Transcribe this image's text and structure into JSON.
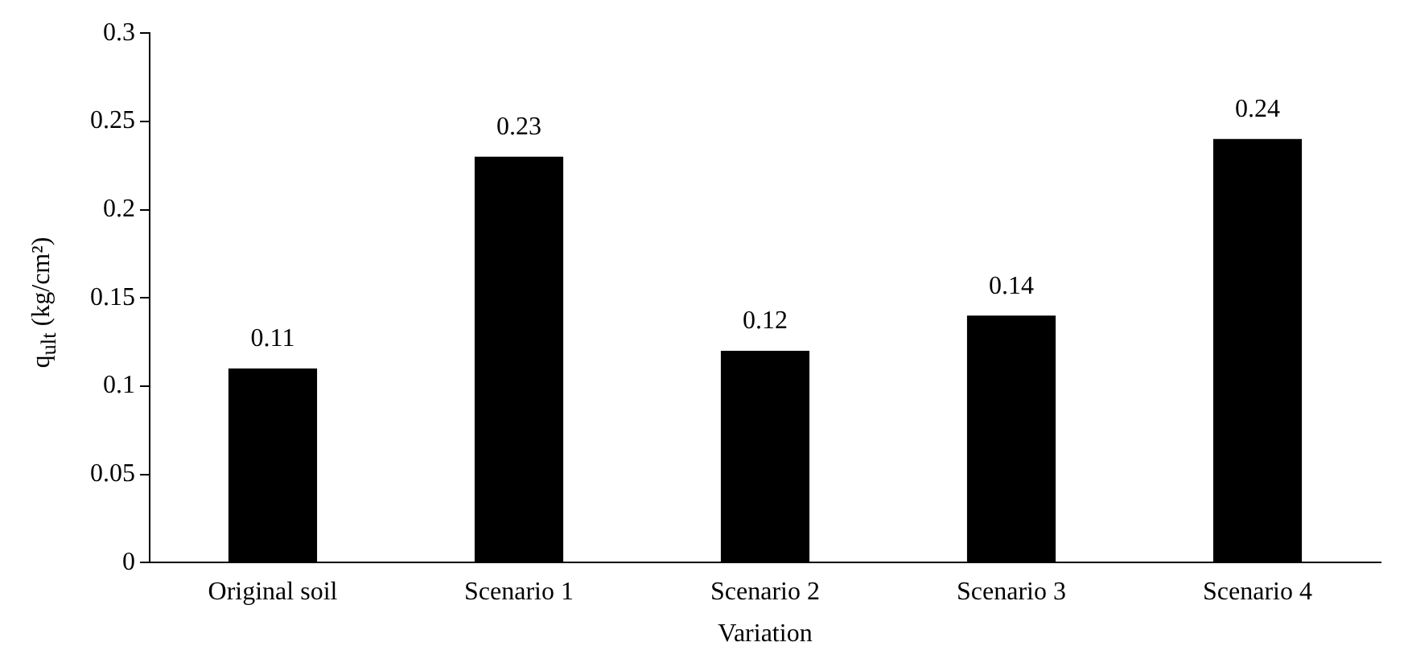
{
  "chart_data": {
    "type": "bar",
    "xlabel": "Variation",
    "ylabel": "q$_{ult}$ (kg/cm²)",
    "categories": [
      "Original soil",
      "Scenario 1",
      "Scenario 2",
      "Scenario 3",
      "Scenario 4"
    ],
    "values": [
      0.11,
      0.23,
      0.12,
      0.14,
      0.24
    ],
    "color": "#000000",
    "ylim": [
      0,
      0.3
    ],
    "yticks": [
      0,
      0.05,
      0.1,
      0.15,
      0.2,
      0.25,
      0.3
    ],
    "data_labels": true
  }
}
